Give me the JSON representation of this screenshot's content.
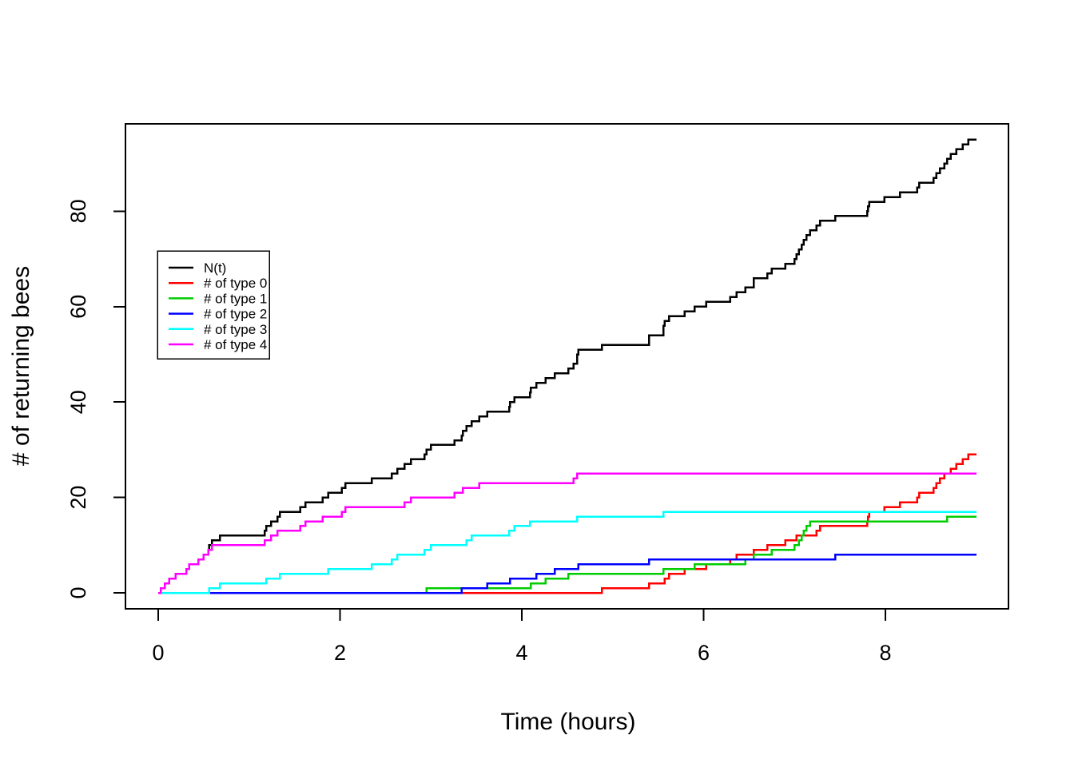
{
  "figure": {
    "background": "#ffffff",
    "box_color": "#000000"
  },
  "chart_data": {
    "type": "line",
    "subtype": "step-counting-process",
    "title": "",
    "xlabel": "Time (hours)",
    "ylabel": "# of returning bees",
    "xticks": [
      0,
      2,
      4,
      6,
      8
    ],
    "yticks": [
      0,
      20,
      40,
      60,
      80
    ],
    "xlim": [
      -0.36,
      9.36
    ],
    "ylim": [
      -3.3,
      98.3
    ],
    "x_data_end": 9.0,
    "grid": false,
    "legend_position": "upper-left-inset",
    "note": "Each series starts at (0,0); every event time increments the count by 1; curves are right-continuous steps and stay flat to t=9.",
    "series": [
      {
        "key": "nt",
        "name": "N(t)",
        "color": "#000000",
        "derived": "cumulative_sum_of_types",
        "final_value": 95
      },
      {
        "key": "type0",
        "name": "# of type 0",
        "color": "#FF0000",
        "final_value": 29,
        "events": [
          4.88,
          5.4,
          5.57,
          5.62,
          5.79,
          6.03,
          6.29,
          6.36,
          6.55,
          6.7,
          6.9,
          7.02,
          7.24,
          7.28,
          7.8,
          7.81,
          7.82,
          7.99,
          8.16,
          8.35,
          8.37,
          8.53,
          8.56,
          8.6,
          8.65,
          8.72,
          8.78,
          8.85,
          8.91
        ]
      },
      {
        "key": "type1",
        "name": "# of type 1",
        "color": "#00CD00",
        "final_value": 16,
        "events": [
          2.95,
          4.1,
          4.26,
          4.51,
          5.56,
          5.9,
          6.46,
          6.55,
          6.75,
          7.0,
          7.05,
          7.08,
          7.1,
          7.13,
          7.17,
          8.68
        ]
      },
      {
        "key": "type2",
        "name": "# of type 2",
        "color": "#0000FF",
        "final_value": 8,
        "events": [
          3.34,
          3.62,
          3.87,
          4.16,
          4.36,
          4.62,
          5.4,
          7.45
        ]
      },
      {
        "key": "type3",
        "name": "# of type 3",
        "color": "#00FFFF",
        "final_value": 17,
        "events": [
          0.56,
          0.68,
          1.19,
          1.34,
          1.87,
          2.35,
          2.57,
          2.63,
          2.93,
          3.0,
          3.39,
          3.45,
          3.86,
          3.92,
          4.09,
          4.61,
          5.56
        ]
      },
      {
        "key": "type4",
        "name": "# of type 4",
        "color": "#FF00FF",
        "final_value": 25,
        "events": [
          0.03,
          0.07,
          0.12,
          0.19,
          0.31,
          0.34,
          0.44,
          0.5,
          0.55,
          0.59,
          1.17,
          1.24,
          1.31,
          1.56,
          1.62,
          1.81,
          2.02,
          2.06,
          2.71,
          2.78,
          3.26,
          3.35,
          3.53,
          4.57,
          4.61
        ]
      }
    ]
  }
}
